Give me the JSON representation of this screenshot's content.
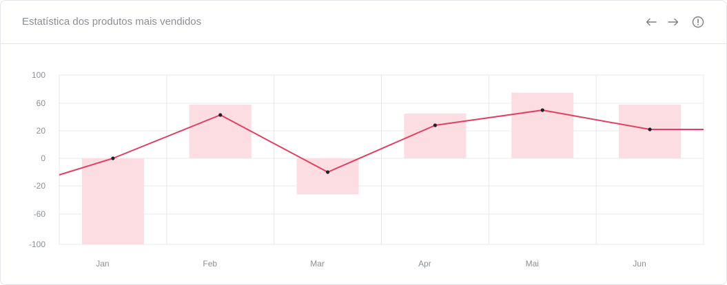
{
  "card": {
    "title": "Estatística dos produtos mais vendidos"
  },
  "icons": {
    "prev": "arrow-left-icon",
    "next": "arrow-right-icon",
    "info": "info-circle-icon"
  },
  "colors": {
    "bar": "#fcdde2",
    "line": "#e23e5e",
    "point": "#1f2329",
    "grid": "#e6e8eb",
    "text": "#8a8f96"
  },
  "chart_data": {
    "type": "bar",
    "title": "Estatística dos produtos mais vendidos",
    "categories": [
      "Jan",
      "Feb",
      "Mar",
      "Apr",
      "Mai",
      "Jun"
    ],
    "series": [
      {
        "type": "bar",
        "values": [
          -100,
          58,
          -32,
          45,
          75,
          58
        ]
      },
      {
        "type": "line",
        "values": [
          0,
          43,
          -10,
          28,
          50,
          22
        ]
      }
    ],
    "line_lead_in": -12,
    "line_lead_out": 22,
    "yticks": [
      100,
      60,
      20,
      0,
      -20,
      -60,
      -100
    ],
    "ylim": [
      -100,
      100
    ],
    "grid": true,
    "legend": "none"
  }
}
